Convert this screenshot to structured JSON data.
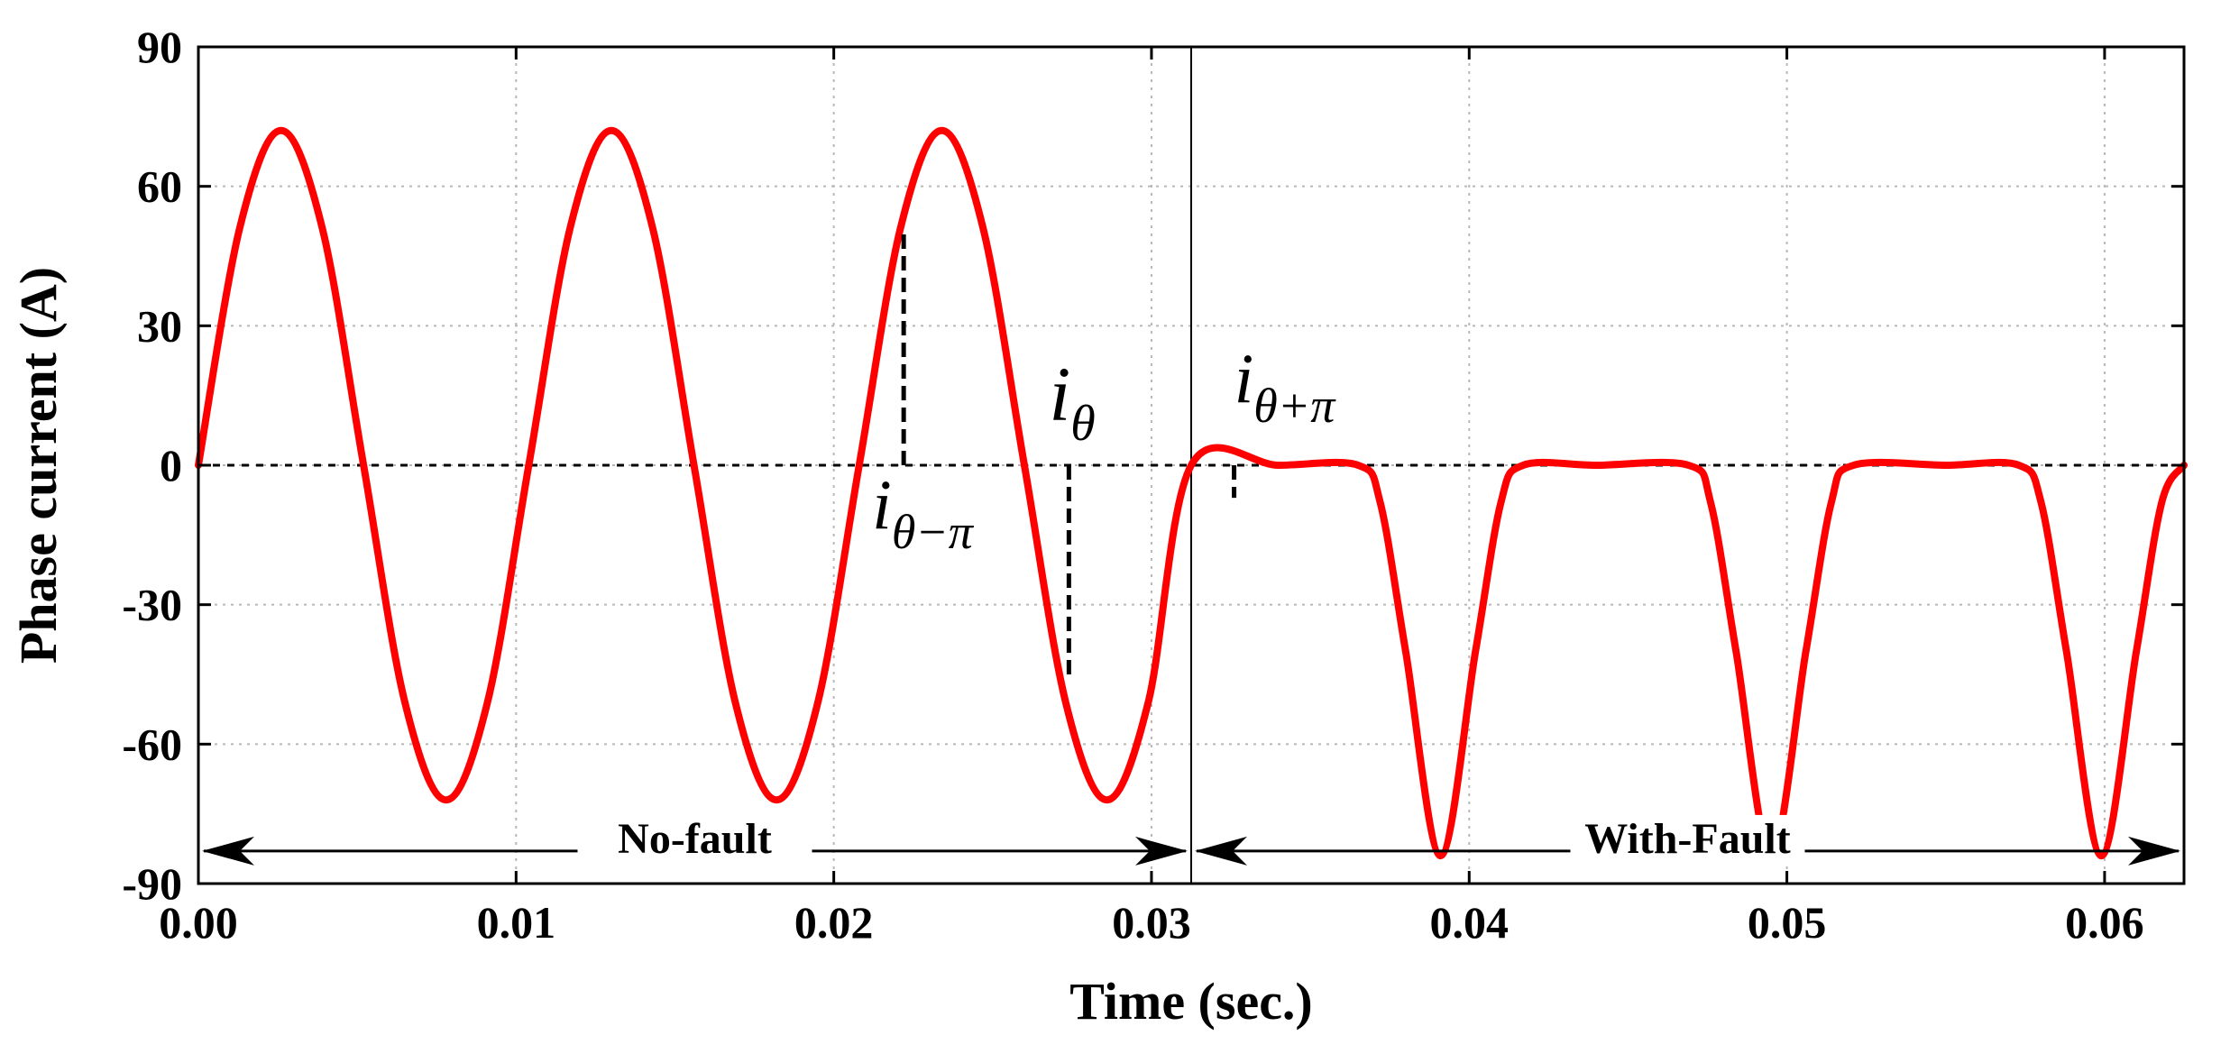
{
  "chart_data": {
    "type": "line",
    "title": "",
    "xlabel": "Time (sec.)",
    "ylabel": "Phase current (A)",
    "xlim": [
      0.0,
      0.0625
    ],
    "ylim": [
      -90,
      90
    ],
    "x_ticks": [
      0.0,
      0.01,
      0.02,
      0.03,
      0.04,
      0.05,
      0.06
    ],
    "x_tick_labels": [
      "0.00",
      "0.01",
      "0.02",
      "0.03",
      "0.04",
      "0.05",
      "0.06"
    ],
    "y_ticks": [
      90,
      60,
      30,
      0,
      -30,
      -60,
      -90
    ],
    "y_tick_labels": [
      "90",
      "60",
      "30",
      "0",
      "-30",
      "-60",
      "-90"
    ],
    "grid": true,
    "fault_time": 0.03125,
    "zero_reference_line": 0,
    "series": [
      {
        "color": "#ff0000",
        "x": [
          0.0,
          0.0013,
          0.0026,
          0.0039,
          0.0052,
          0.0065,
          0.0078,
          0.0091,
          0.0104,
          0.0117,
          0.013,
          0.0143,
          0.0156,
          0.0169,
          0.0182,
          0.0195,
          0.0208,
          0.0221,
          0.0234,
          0.0247,
          0.026,
          0.0273,
          0.0286,
          0.0299,
          0.03125,
          0.034,
          0.0365,
          0.0372,
          0.038,
          0.0391,
          0.0402,
          0.041,
          0.0417,
          0.044,
          0.0469,
          0.0476,
          0.0484,
          0.0495,
          0.0506,
          0.0514,
          0.0521,
          0.055,
          0.0573,
          0.058,
          0.0588,
          0.0599,
          0.061,
          0.0618,
          0.0625
        ],
        "y": [
          0,
          51,
          72,
          51,
          0,
          -51,
          -72,
          -51,
          0,
          51,
          72,
          51,
          0,
          -51,
          -72,
          -51,
          0,
          51,
          72,
          51,
          0,
          -51,
          -72,
          -51,
          0,
          0,
          0,
          -8,
          -40,
          -84,
          -40,
          -8,
          0,
          0,
          0,
          -8,
          -40,
          -84,
          -40,
          -8,
          0,
          0,
          0,
          -8,
          -40,
          -84,
          -40,
          -8,
          0
        ]
      }
    ],
    "annotations": [
      {
        "text": "No-fault",
        "x_from": 0.0,
        "x_to": 0.03125,
        "y": -83
      },
      {
        "text": "With-Fault",
        "x_from": 0.03125,
        "x_to": 0.0625,
        "y": -83
      }
    ],
    "markers": [
      {
        "symbol": "i",
        "subscript": "θ−π",
        "x": 0.0222,
        "y_from": 0,
        "y_to": 50
      },
      {
        "symbol": "i",
        "subscript": "θ",
        "x": 0.0274,
        "y_from": 0,
        "y_to": -45
      },
      {
        "symbol": "i",
        "subscript": "θ+π",
        "x": 0.0326,
        "y_from": 0,
        "y_to": -7
      }
    ]
  }
}
